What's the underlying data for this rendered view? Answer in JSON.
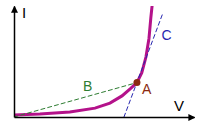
{
  "chart_data": {
    "type": "line",
    "x_label": "V",
    "y_label": "I",
    "xlim": [
      0,
      10
    ],
    "ylim": [
      0,
      10
    ],
    "xticks": [],
    "yticks": [],
    "tick_labels": false,
    "series": [
      {
        "color": "#b4128a",
        "line_style": "solid",
        "x": [
          0,
          1.44,
          3.1,
          4.5,
          5.33,
          6.0,
          6.5,
          6.83,
          7.1,
          7.33,
          7.5,
          7.6,
          7.67
        ],
        "values": [
          0.18,
          0.27,
          0.45,
          0.8,
          1.25,
          1.9,
          2.6,
          3.1,
          4.0,
          5.4,
          7.1,
          8.9,
          10.0
        ]
      },
      {
        "name": "B",
        "color": "#2e7d32",
        "line_style": "dashed",
        "x": [
          0,
          6.83
        ],
        "values": [
          0,
          3.1
        ]
      },
      {
        "name": "C",
        "color": "#2727b0",
        "line_style": "dashed",
        "x": [
          6.11,
          8.28
        ],
        "values": [
          0,
          9.4
        ]
      }
    ],
    "annotations": [
      {
        "text": "A",
        "x": 6.83,
        "y": 3.1,
        "color": "#8b2a10",
        "marker": "circle"
      }
    ]
  }
}
